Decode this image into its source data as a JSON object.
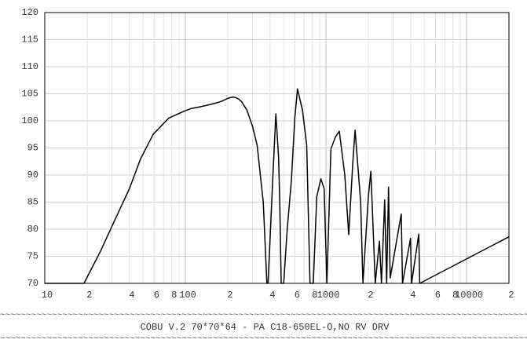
{
  "chart_data": {
    "type": "line",
    "x": [
      10,
      19,
      25,
      30,
      40,
      48,
      59,
      76,
      98,
      111,
      127,
      138,
      154,
      165,
      171,
      180,
      187,
      202,
      218,
      228,
      232,
      240,
      250,
      274,
      300,
      324,
      358,
      380,
      387,
      400,
      418,
      440,
      460,
      469,
      480,
      500,
      530,
      567,
      600,
      627,
      680,
      729,
      770,
      812,
      860,
      920,
      970,
      1014,
      1056,
      1084,
      1166,
      1244,
      1360,
      1450,
      1550,
      1610,
      1763,
      1830,
      2000,
      2085,
      2165,
      2240,
      2400,
      2480,
      2615,
      2700,
      2785,
      2860,
      3430,
      3500,
      3990,
      4060,
      4570,
      4640,
      20000
    ],
    "series": [
      {
        "color": "#000000",
        "values": [
          70,
          70,
          76,
          80.5,
          87.5,
          93,
          97.5,
          100.5,
          101.8,
          102.3,
          102.6,
          102.8,
          103.1,
          103.3,
          103.4,
          103.6,
          103.8,
          104.2,
          104.4,
          104.3,
          104.2,
          104.0,
          103.6,
          102.0,
          99.0,
          95.5,
          85,
          70,
          70,
          78,
          89,
          101.3,
          93.3,
          85,
          70,
          70,
          80,
          89,
          100.6,
          105.9,
          102,
          95.5,
          70,
          70,
          86,
          89.3,
          87.5,
          70,
          85,
          94.8,
          97,
          98.1,
          90,
          79,
          92,
          98.3,
          85,
          70,
          86,
          90.7,
          80,
          70,
          77.8,
          70,
          85.4,
          70,
          87.8,
          71,
          82.8,
          70,
          78.3,
          70,
          79.1,
          70,
          78.6
        ]
      }
    ],
    "xlim": [
      10,
      20000
    ],
    "ylim": [
      70,
      120
    ],
    "log_x": true,
    "grid": true,
    "xticks": [
      10,
      {
        "value": 20,
        "label": "2"
      },
      {
        "value": 40,
        "label": "4"
      },
      {
        "value": 60,
        "label": "6"
      },
      {
        "value": 80,
        "label": "8"
      },
      100,
      {
        "value": 200,
        "label": "2"
      },
      {
        "value": 400,
        "label": "4"
      },
      {
        "value": 600,
        "label": "6"
      },
      {
        "value": 800,
        "label": "8"
      },
      1000,
      {
        "value": 2000,
        "label": "2"
      },
      {
        "value": 4000,
        "label": "4"
      },
      {
        "value": 6000,
        "label": "6"
      },
      {
        "value": 8000,
        "label": "8"
      },
      10000,
      {
        "value": 20000,
        "label": "2"
      }
    ],
    "yticks": [
      70,
      75,
      80,
      85,
      90,
      95,
      100,
      105,
      110,
      115,
      120
    ],
    "rule": "~~~~~~~~~~~~~~~~~~~~~~~~~~~~~~~~~~~~~~~~~~~~~~~~~~~~~~~~~~~~~~~~~~~~~~~~~~~~~~~~~~~~~~~~~~~~~~~~~~~~~~~~~~~~~~~~~~~~~~~~",
    "caption": "COBU V.2 70*70*64 - PA C18-650EL-O,NO RV DRV"
  }
}
